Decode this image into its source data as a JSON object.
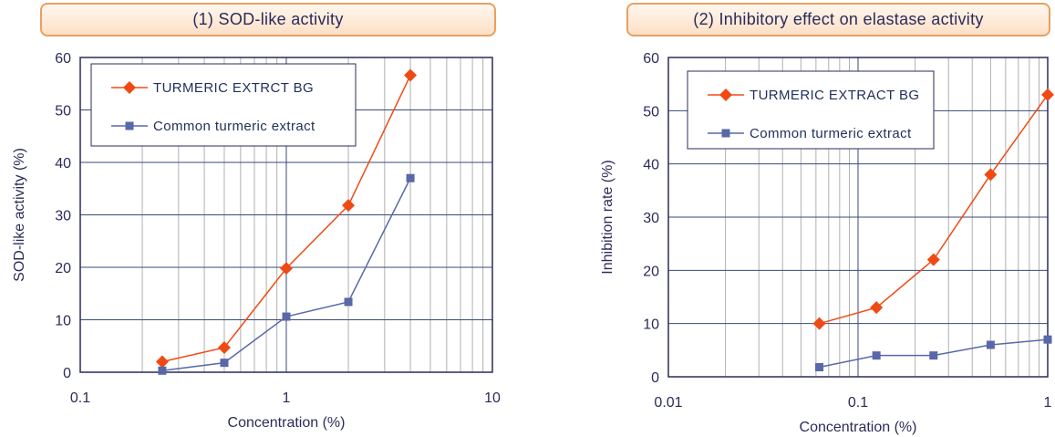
{
  "colors": {
    "series_red": "#f04a14",
    "series_blue": "#5868a8",
    "axis": "#2b2b5a",
    "grid_major": "#3a4a7a",
    "grid_minor": "#b0b0b0"
  },
  "chart_data": [
    {
      "type": "line",
      "title": "(1) SOD-like activity",
      "xlabel": "Concentration (%)",
      "ylabel": "SOD-like activity (%)",
      "x_scale": "log",
      "xlim": [
        0.1,
        10
      ],
      "ylim": [
        0,
        60
      ],
      "x_ticks": [
        "0.1",
        "1",
        "10"
      ],
      "y_ticks": [
        "0",
        "10",
        "20",
        "30",
        "40",
        "50",
        "60"
      ],
      "grid": true,
      "legend_position": "top-left",
      "series": [
        {
          "name": "TURMERIC EXTRCT BG",
          "marker": "diamond",
          "color": "#f04a14",
          "x": [
            0.25,
            0.5,
            1,
            2,
            4
          ],
          "y": [
            2,
            4.7,
            19.8,
            31.8,
            56.6
          ]
        },
        {
          "name": "Common turmeric extract",
          "marker": "square",
          "color": "#5868a8",
          "x": [
            0.25,
            0.5,
            1,
            2,
            4
          ],
          "y": [
            0.3,
            1.8,
            10.6,
            13.4,
            37
          ]
        }
      ]
    },
    {
      "type": "line",
      "title": "(2) Inhibitory effect on elastase activity",
      "xlabel": "Concentration (%)",
      "ylabel": "Inhibition rate (%)",
      "x_scale": "log",
      "xlim": [
        0.01,
        1
      ],
      "ylim": [
        0,
        60
      ],
      "x_ticks": [
        "0.01",
        "0.1",
        "1"
      ],
      "y_ticks": [
        "0",
        "10",
        "20",
        "30",
        "40",
        "50",
        "60"
      ],
      "grid": true,
      "legend_position": "top-left",
      "series": [
        {
          "name": "TURMERIC EXTRACT BG",
          "marker": "diamond",
          "color": "#f04a14",
          "x": [
            0.0625,
            0.125,
            0.25,
            0.5,
            1
          ],
          "y": [
            10,
            13,
            22,
            38,
            53
          ]
        },
        {
          "name": "Common turmeric extract",
          "marker": "square",
          "color": "#5868a8",
          "x": [
            0.0625,
            0.125,
            0.25,
            0.5,
            1
          ],
          "y": [
            1.8,
            4,
            4,
            6,
            7
          ]
        }
      ]
    }
  ]
}
